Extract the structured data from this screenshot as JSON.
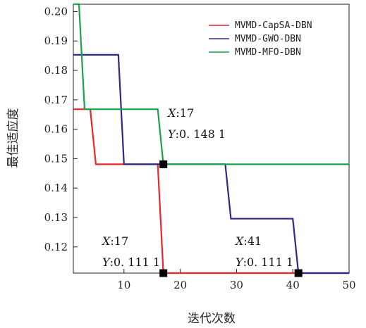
{
  "chart_data": {
    "type": "line",
    "xlabel": "迭代次数",
    "ylabel": "最佳适应度",
    "xlim": [
      1,
      50
    ],
    "ylim": [
      0.1111,
      0.2025
    ],
    "x_ticks": [
      10,
      20,
      30,
      40,
      50
    ],
    "y_ticks": [
      0.12,
      0.13,
      0.14,
      0.15,
      0.16,
      0.17,
      0.18,
      0.19,
      0.2
    ],
    "y_tick_labels": [
      "0.12",
      "0.13",
      "0.14",
      "0.15",
      "0.16",
      "0.17",
      "0.18",
      "0.19",
      "0.20"
    ],
    "legend_position": "top-right",
    "grid": false,
    "series": [
      {
        "name": "MVMD-CapSA-DBN",
        "color": "#e8262b",
        "points": [
          [
            1,
            0.1668
          ],
          [
            4,
            0.1668
          ],
          [
            5,
            0.1481
          ],
          [
            16,
            0.1481
          ],
          [
            17,
            0.1111
          ],
          [
            50,
            0.1111
          ]
        ]
      },
      {
        "name": "MVMD-GWO-DBN",
        "color": "#2b2a8c",
        "points": [
          [
            1,
            0.1853
          ],
          [
            9,
            0.1853
          ],
          [
            10,
            0.1481
          ],
          [
            28,
            0.1481
          ],
          [
            29,
            0.1296
          ],
          [
            40,
            0.1296
          ],
          [
            41,
            0.1111
          ],
          [
            50,
            0.1111
          ]
        ]
      },
      {
        "name": "MVMD-MFO-DBN",
        "color": "#18a34a",
        "points": [
          [
            1,
            0.2025
          ],
          [
            2,
            0.2025
          ],
          [
            3,
            0.1668
          ],
          [
            16,
            0.1668
          ],
          [
            17,
            0.1481
          ],
          [
            50,
            0.1481
          ]
        ]
      }
    ],
    "markers": [
      {
        "x": 17,
        "y": 0.1481
      },
      {
        "x": 17,
        "y": 0.1111
      },
      {
        "x": 41,
        "y": 0.1111
      }
    ],
    "annotations": [
      {
        "x_label": "X",
        "x_value": ":17",
        "y_label": "Y",
        "y_value": ":0. 148  1"
      },
      {
        "x_label": "X",
        "x_value": ":17",
        "y_label": "Y",
        "y_value": ":0. 111  1"
      },
      {
        "x_label": "X",
        "x_value": ":41",
        "y_label": "Y",
        "y_value": ":0. 111  1"
      }
    ]
  }
}
